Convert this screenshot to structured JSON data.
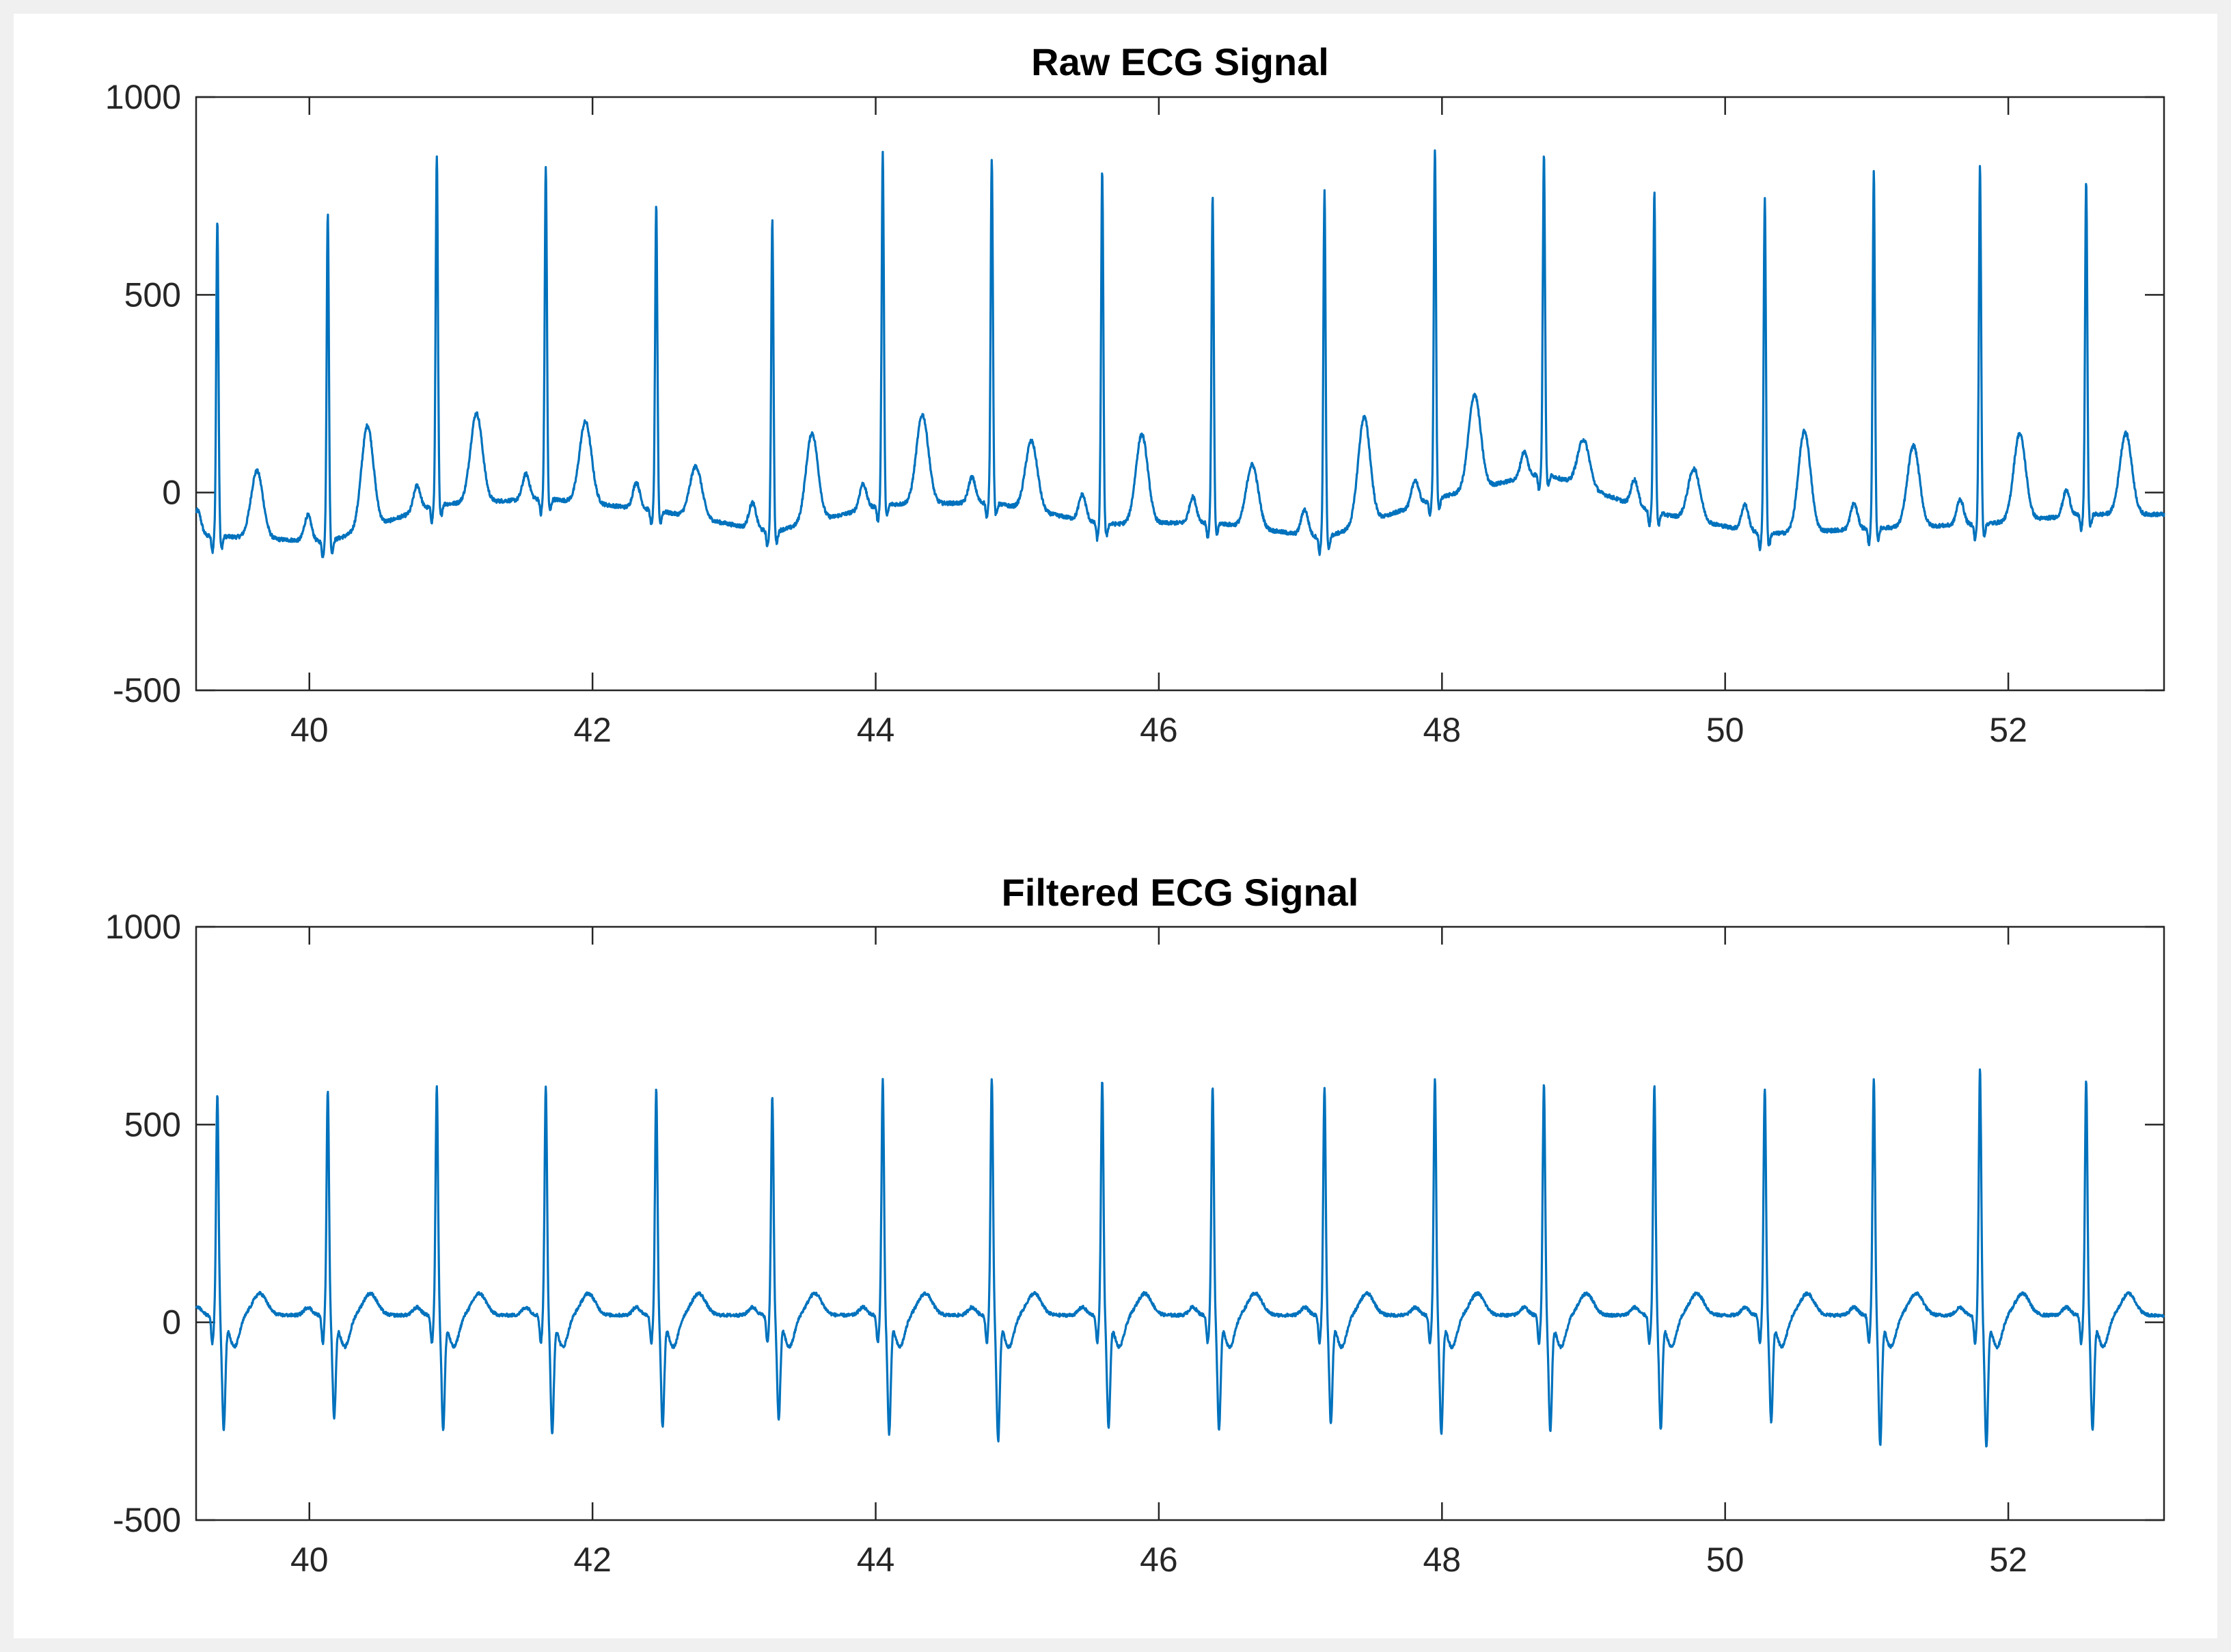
{
  "figure": {
    "background": "#f0f0f0"
  },
  "chart_data": [
    {
      "type": "line",
      "title": "Raw ECG Signal",
      "xlabel": "",
      "ylabel": "",
      "xlim": [
        39.2,
        53.1
      ],
      "ylim": [
        -500,
        1000
      ],
      "xticks": [
        40,
        42,
        44,
        46,
        48,
        50,
        52
      ],
      "yticks": [
        -500,
        0,
        500,
        1000
      ],
      "xtick_labels": [
        "40",
        "42",
        "44",
        "46",
        "48",
        "50",
        "52"
      ],
      "ytick_labels": [
        "-500",
        "0",
        "500",
        "1000"
      ],
      "grid": false,
      "line_color": "#0072bd",
      "beats": [
        {
          "r_time": 39.35,
          "r_peak": 690,
          "baseline": -110,
          "t_peak": 60
        },
        {
          "r_time": 40.13,
          "r_peak": 705,
          "baseline": -125,
          "t_peak": 135
        },
        {
          "r_time": 40.9,
          "r_peak": 855,
          "baseline": -30,
          "t_peak": 195
        },
        {
          "r_time": 41.67,
          "r_peak": 825,
          "baseline": -15,
          "t_peak": 190
        },
        {
          "r_time": 42.45,
          "r_peak": 725,
          "baseline": -45,
          "t_peak": 85
        },
        {
          "r_time": 43.27,
          "r_peak": 690,
          "baseline": -100,
          "t_peak": 125
        },
        {
          "r_time": 44.05,
          "r_peak": 860,
          "baseline": -30,
          "t_peak": 195
        },
        {
          "r_time": 44.82,
          "r_peak": 845,
          "baseline": -25,
          "t_peak": 150
        },
        {
          "r_time": 45.6,
          "r_peak": 810,
          "baseline": -80,
          "t_peak": 145
        },
        {
          "r_time": 46.38,
          "r_peak": 745,
          "baseline": -75,
          "t_peak": 85
        },
        {
          "r_time": 47.17,
          "r_peak": 760,
          "baseline": -115,
          "t_peak": 155
        },
        {
          "r_time": 47.95,
          "r_peak": 865,
          "baseline": -15,
          "t_peak": 225
        },
        {
          "r_time": 48.72,
          "r_peak": 860,
          "baseline": 50,
          "t_peak": 170
        },
        {
          "r_time": 49.5,
          "r_peak": 760,
          "baseline": -50,
          "t_peak": 80
        },
        {
          "r_time": 50.28,
          "r_peak": 745,
          "baseline": -105,
          "t_peak": 150
        },
        {
          "r_time": 51.05,
          "r_peak": 810,
          "baseline": -90,
          "t_peak": 115
        },
        {
          "r_time": 51.8,
          "r_peak": 825,
          "baseline": -80,
          "t_peak": 140
        },
        {
          "r_time": 52.55,
          "r_peak": 790,
          "baseline": -55,
          "t_peak": 150
        }
      ]
    },
    {
      "type": "line",
      "title": "Filtered ECG Signal",
      "xlabel": "",
      "ylabel": "",
      "xlim": [
        39.2,
        53.1
      ],
      "ylim": [
        -500,
        1000
      ],
      "xticks": [
        40,
        42,
        44,
        46,
        48,
        50,
        52
      ],
      "yticks": [
        -500,
        0,
        500,
        1000
      ],
      "xtick_labels": [
        "40",
        "42",
        "44",
        "46",
        "48",
        "50",
        "52"
      ],
      "ytick_labels": [
        "-500",
        "0",
        "500",
        "1000"
      ],
      "grid": false,
      "line_color": "#0072bd",
      "beats": [
        {
          "r_time": 39.35,
          "r_peak": 560,
          "s_trough": -280
        },
        {
          "r_time": 40.13,
          "r_peak": 570,
          "s_trough": -250
        },
        {
          "r_time": 40.9,
          "r_peak": 580,
          "s_trough": -280
        },
        {
          "r_time": 41.67,
          "r_peak": 580,
          "s_trough": -290
        },
        {
          "r_time": 42.45,
          "r_peak": 575,
          "s_trough": -275
        },
        {
          "r_time": 43.27,
          "r_peak": 555,
          "s_trough": -255
        },
        {
          "r_time": 44.05,
          "r_peak": 595,
          "s_trough": -290
        },
        {
          "r_time": 44.82,
          "r_peak": 600,
          "s_trough": -310
        },
        {
          "r_time": 45.6,
          "r_peak": 595,
          "s_trough": -275
        },
        {
          "r_time": 46.38,
          "r_peak": 580,
          "s_trough": -280
        },
        {
          "r_time": 47.17,
          "r_peak": 575,
          "s_trough": -265
        },
        {
          "r_time": 47.95,
          "r_peak": 595,
          "s_trough": -290
        },
        {
          "r_time": 48.72,
          "r_peak": 585,
          "s_trough": -285
        },
        {
          "r_time": 49.5,
          "r_peak": 580,
          "s_trough": -280
        },
        {
          "r_time": 50.28,
          "r_peak": 575,
          "s_trough": -260
        },
        {
          "r_time": 51.05,
          "r_peak": 600,
          "s_trough": -320
        },
        {
          "r_time": 51.8,
          "r_peak": 620,
          "s_trough": -325
        },
        {
          "r_time": 52.55,
          "r_peak": 595,
          "s_trough": -285
        }
      ]
    }
  ]
}
